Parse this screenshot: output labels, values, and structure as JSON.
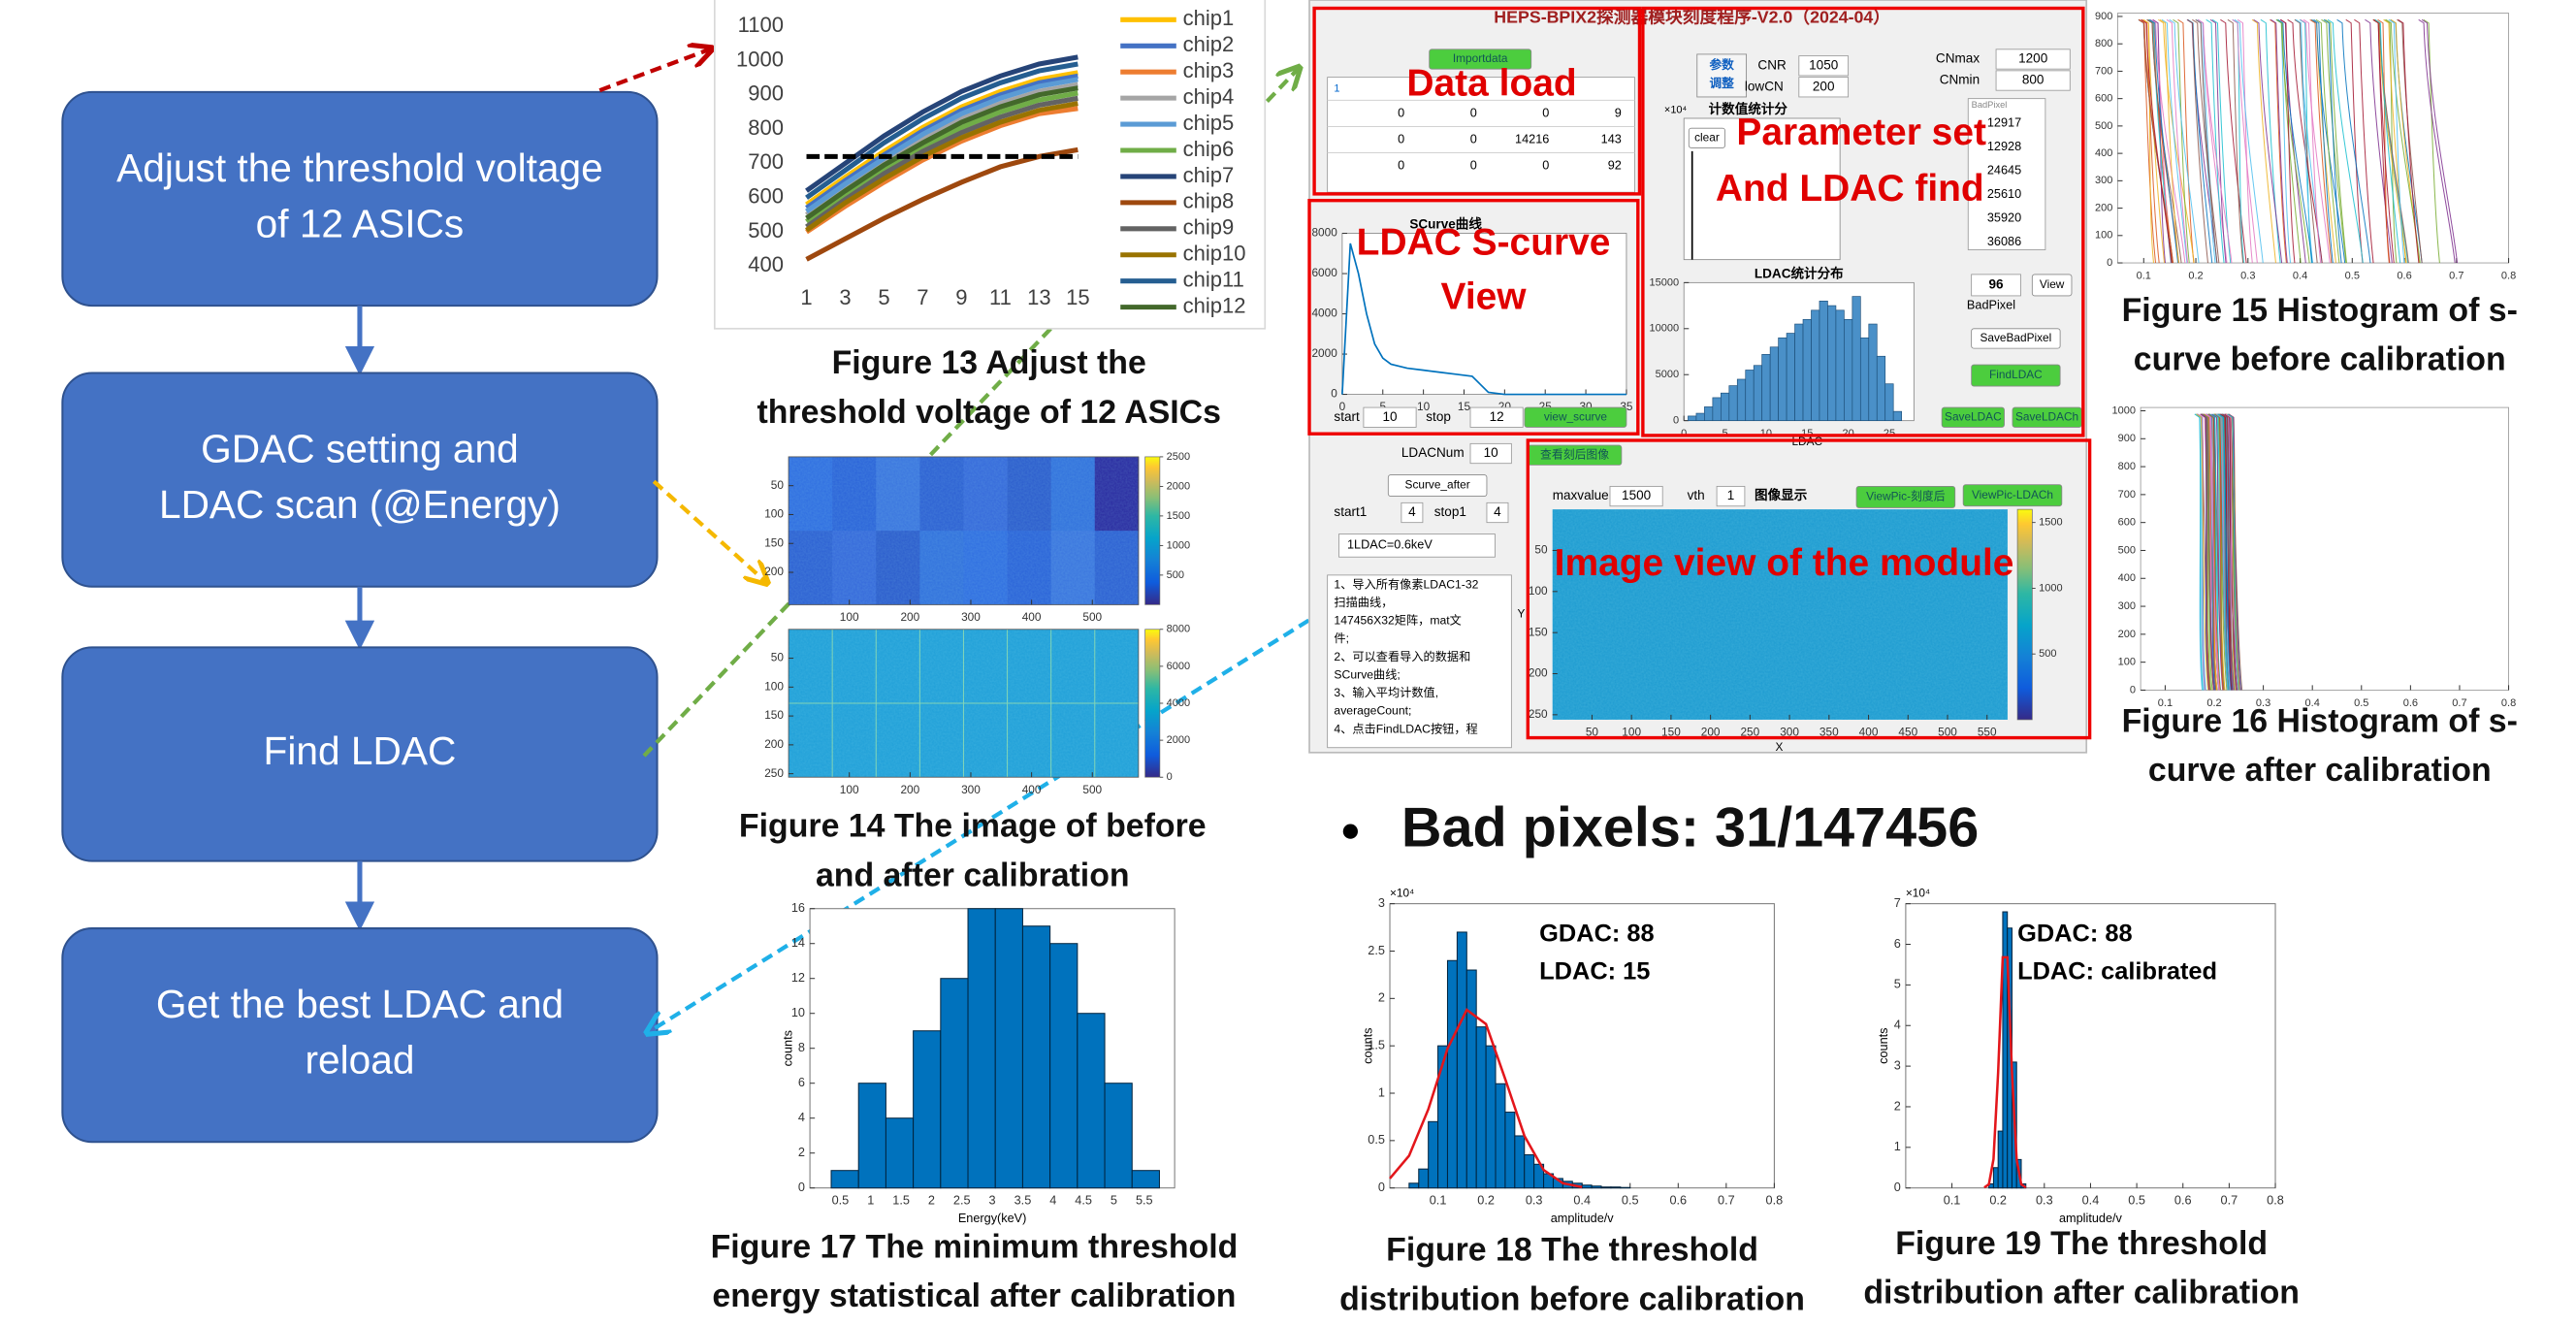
{
  "flow": {
    "steps": [
      {
        "lines": [
          "Adjust the threshold voltage",
          "of 12 ASICs"
        ]
      },
      {
        "lines": [
          "GDAC setting and",
          "LDAC scan (@Energy)"
        ]
      },
      {
        "lines": [
          "Find LDAC"
        ]
      },
      {
        "lines": [
          "Get the best LDAC and",
          "reload"
        ]
      }
    ]
  },
  "chart_data": [
    {
      "type": "line",
      "caption": [
        "Figure 13 Adjust the",
        "threshold voltage of 12 ASICs"
      ],
      "x": [
        1,
        3,
        5,
        7,
        9,
        11,
        13,
        15
      ],
      "xlim": [
        0.5,
        15.5
      ],
      "xticks": [
        1,
        3,
        5,
        7,
        9,
        11,
        13,
        15
      ],
      "ylim": [
        400,
        1100
      ],
      "yticks": [
        400,
        500,
        600,
        700,
        800,
        900,
        1000,
        1100
      ],
      "threshold": 720,
      "series": [
        {
          "name": "chip1",
          "color": "#ffc000",
          "values": [
            580,
            660,
            735,
            805,
            865,
            910,
            945,
            965
          ]
        },
        {
          "name": "chip2",
          "color": "#4472c4",
          "values": [
            570,
            650,
            725,
            795,
            855,
            900,
            935,
            955
          ]
        },
        {
          "name": "chip3",
          "color": "#ed7d31",
          "values": [
            500,
            575,
            645,
            710,
            765,
            810,
            845,
            860
          ]
        },
        {
          "name": "chip4",
          "color": "#a5a5a5",
          "values": [
            550,
            630,
            705,
            770,
            830,
            875,
            910,
            930
          ]
        },
        {
          "name": "chip5",
          "color": "#5b9bd5",
          "values": [
            560,
            640,
            715,
            785,
            845,
            890,
            925,
            945
          ]
        },
        {
          "name": "chip6",
          "color": "#70ad47",
          "values": [
            530,
            610,
            685,
            750,
            805,
            850,
            885,
            905
          ]
        },
        {
          "name": "chip7",
          "color": "#264478",
          "values": [
            620,
            700,
            780,
            850,
            910,
            955,
            990,
            1010
          ]
        },
        {
          "name": "chip8",
          "color": "#9e480e",
          "values": [
            420,
            480,
            540,
            595,
            645,
            690,
            720,
            740
          ]
        },
        {
          "name": "chip9",
          "color": "#636363",
          "values": [
            515,
            595,
            670,
            735,
            790,
            835,
            870,
            890
          ]
        },
        {
          "name": "chip10",
          "color": "#997300",
          "values": [
            505,
            585,
            655,
            720,
            775,
            820,
            855,
            875
          ]
        },
        {
          "name": "chip11",
          "color": "#255e91",
          "values": [
            600,
            680,
            760,
            830,
            890,
            935,
            970,
            990
          ]
        },
        {
          "name": "chip12",
          "color": "#43682b",
          "values": [
            540,
            620,
            695,
            760,
            820,
            865,
            900,
            920
          ]
        }
      ]
    },
    {
      "type": "histogram",
      "caption": [
        "Figure 17 The minimum threshold",
        "energy statistical after calibration"
      ],
      "color": "#0072bd",
      "xlabel": "Energy(keV)",
      "ylabel": "counts",
      "bins": [
        0.35,
        0.8,
        1.25,
        1.7,
        2.15,
        2.6,
        3.05,
        3.5,
        3.95,
        4.4,
        4.85,
        5.3,
        5.75
      ],
      "values": [
        1,
        6,
        4,
        9,
        12,
        16,
        16,
        15,
        14,
        10,
        6,
        1
      ],
      "xlim": [
        0,
        6
      ],
      "xticks": [
        0.5,
        1,
        1.5,
        2,
        2.5,
        3,
        3.5,
        4,
        4.5,
        5,
        5.5
      ],
      "ylim": [
        0,
        16
      ],
      "yticks": [
        0,
        2,
        4,
        6,
        8,
        10,
        12,
        14,
        16
      ]
    },
    {
      "type": "histogram",
      "caption": [
        "Figure 18 The threshold",
        "distribution before calibration"
      ],
      "color": "#0072bd",
      "xlabel": "amplitude/v",
      "ylabel": "counts",
      "multiplier": "×10⁴",
      "annotations": [
        "GDAC: 88",
        "LDAC: 15"
      ],
      "bins": [
        0.04,
        0.06,
        0.08,
        0.1,
        0.12,
        0.14,
        0.16,
        0.18,
        0.2,
        0.22,
        0.24,
        0.26,
        0.28,
        0.3,
        0.32,
        0.34,
        0.36,
        0.38,
        0.4,
        0.42,
        0.44,
        0.46,
        0.48,
        0.5
      ],
      "values": [
        0.05,
        0.2,
        0.7,
        1.5,
        2.4,
        2.7,
        2.3,
        1.7,
        1.5,
        1.1,
        0.8,
        0.55,
        0.35,
        0.25,
        0.15,
        0.1,
        0.07,
        0.05,
        0.03,
        0.02,
        0.01,
        0.01,
        0.005
      ],
      "fit": {
        "color": "#e3161b",
        "x": [
          0,
          0.04,
          0.08,
          0.12,
          0.16,
          0.2,
          0.24,
          0.28,
          0.32,
          0.36,
          0.4
        ],
        "values": [
          0.1,
          0.34,
          0.83,
          1.47,
          1.88,
          1.73,
          1.15,
          0.55,
          0.19,
          0.05,
          0.01
        ]
      },
      "xlim": [
        0,
        0.8
      ],
      "xticks": [
        0.1,
        0.2,
        0.3,
        0.4,
        0.5,
        0.6,
        0.7,
        0.8
      ],
      "ylim": [
        0,
        3
      ],
      "yticks": [
        0,
        0.5,
        1,
        1.5,
        2,
        2.5,
        3
      ]
    },
    {
      "type": "histogram",
      "caption": [
        "Figure 19 The threshold",
        "distribution after calibration"
      ],
      "color": "#0072bd",
      "xlabel": "amplitude/v",
      "ylabel": "counts",
      "multiplier": "×10⁴",
      "annotations": [
        "GDAC: 88",
        "LDAC: calibrated"
      ],
      "bins": [
        0.18,
        0.19,
        0.2,
        0.21,
        0.22,
        0.23,
        0.24,
        0.25,
        0.26
      ],
      "values": [
        0.1,
        0.5,
        1.4,
        6.8,
        6.4,
        3.1,
        0.7,
        0.1
      ],
      "fit": {
        "color": "#e3161b",
        "x": [
          0.17,
          0.18,
          0.19,
          0.2,
          0.21,
          0.22,
          0.23,
          0.24,
          0.25,
          0.26
        ],
        "values": [
          0.01,
          0.09,
          0.71,
          2.84,
          5.68,
          5.68,
          2.84,
          0.71,
          0.09,
          0.01
        ]
      },
      "xlim": [
        0,
        0.8
      ],
      "xticks": [
        0.1,
        0.2,
        0.3,
        0.4,
        0.5,
        0.6,
        0.7,
        0.8
      ],
      "ylim": [
        0,
        7
      ],
      "yticks": [
        0,
        1,
        2,
        3,
        4,
        5,
        6,
        7
      ]
    }
  ],
  "heatmaps": {
    "caption": [
      "Figure 14 The image of before",
      "and after calibration"
    ],
    "panels": [
      {
        "xlim": [
          0,
          576
        ],
        "xticks": [
          100,
          200,
          300,
          400,
          500
        ],
        "ylim": [
          0,
          256
        ],
        "yticks": [
          50,
          100,
          150,
          200
        ],
        "clim": [
          0,
          2500
        ],
        "cticks": [
          500,
          1000,
          1500,
          2000,
          2500
        ]
      },
      {
        "xlim": [
          0,
          576
        ],
        "xticks": [
          100,
          200,
          300,
          400,
          500
        ],
        "ylim": [
          0,
          256
        ],
        "yticks": [
          50,
          100,
          150,
          200,
          250
        ],
        "clim": [
          0,
          8000
        ],
        "cticks": [
          0,
          2000,
          4000,
          6000,
          8000
        ]
      }
    ]
  },
  "scurve_histograms": [
    {
      "caption": [
        "Figure 15 Histogram of s-",
        "curve before calibration"
      ],
      "xlim": [
        0.05,
        0.8
      ],
      "xticks": [
        0.1,
        0.2,
        0.3,
        0.4,
        0.5,
        0.6,
        0.7,
        0.8
      ],
      "ylim": [
        0,
        900
      ],
      "yticks": [
        0,
        100,
        200,
        300,
        400,
        500,
        600,
        700,
        800,
        900
      ]
    },
    {
      "caption": [
        "Figure 16 Histogram of s-",
        "curve after calibration"
      ],
      "xlim": [
        0.05,
        0.8
      ],
      "xticks": [
        0.1,
        0.2,
        0.3,
        0.4,
        0.5,
        0.6,
        0.7,
        0.8
      ],
      "ylim": [
        0,
        1000
      ],
      "yticks": [
        0,
        100,
        200,
        300,
        400,
        500,
        600,
        700,
        800,
        900,
        1000
      ]
    }
  ],
  "bad_pixels": "Bad pixels: 31/147456",
  "gui": {
    "title": "HEPS-BPIX2探测器模块刻度程序-V2.0（2024-04）",
    "panel_labels": [
      "Data load",
      "Parameter set",
      "And LDAC find",
      "LDAC S-curve",
      "View",
      "Image view of the module"
    ],
    "buttons": {
      "importdata": "Importdata",
      "view_scurve": "view_scurve",
      "find": "FindLDAC",
      "save_bad": "SaveBadPixel",
      "save_ldac": "SaveLDAC",
      "save_ldach": "SaveLDACh",
      "view": "View",
      "scurve_after": "Scurve_after",
      "view_pic": "ViewPic-刻度后",
      "view_pic_ldach": "ViewPic-LDACh",
      "check": "查看刻后图像",
      "clear": "clear",
      "param": [
        "参数",
        "调整"
      ]
    },
    "fields": [
      {
        "label": "CNR",
        "value": 1050
      },
      {
        "label": "lowCN",
        "value": 200
      },
      {
        "label": "CNmax",
        "value": 1200
      },
      {
        "label": "CNmin",
        "value": 800
      },
      {
        "label": "start",
        "value": 10
      },
      {
        "label": "stop",
        "value": 12
      },
      {
        "label": "LDACNum",
        "value": 10
      },
      {
        "label": "start1",
        "value": 4
      },
      {
        "label": "stop1",
        "value": 4
      },
      {
        "label": "maxvalue",
        "value": 1500
      },
      {
        "label": "vth",
        "value": 1
      }
    ],
    "plot_titles": [
      "计数值统计分",
      "SCurve曲线",
      "LDAC统计分布",
      "图像显示"
    ],
    "count_multiplier": "×10⁴",
    "table_header": 1,
    "table_rows": [
      [
        0,
        0,
        0,
        9
      ],
      [
        0,
        0,
        14216,
        143
      ],
      [
        0,
        0,
        0,
        92
      ]
    ],
    "bad_pixel_list_title": "BadPixel",
    "bad_pixel_list": [
      12917,
      12928,
      24645,
      25610,
      35920,
      36086
    ],
    "bad_pixel_count": 96,
    "bad_pixel_label": "BadPixel",
    "ldac_unit": "1LDAC=0.6keV",
    "instructions": [
      "1、导入所有像素LDAC1-32",
      "扫描曲线，",
      "147456X32矩阵，mat文",
      "件;",
      "2、可以查看导入的数据和",
      "SCurve曲线;",
      "3、输入平均计数值,",
      "averageCount;",
      "4、点击FindLDAC按钮，程"
    ],
    "scurve": {
      "x": [
        0,
        1,
        2,
        3,
        4,
        5,
        6,
        8,
        10,
        12,
        14,
        16,
        17,
        18,
        20,
        25,
        30,
        35
      ],
      "values": [
        0,
        7500,
        6000,
        4000,
        2500,
        1800,
        1500,
        1300,
        1200,
        1100,
        1000,
        900,
        500,
        100,
        0,
        0,
        0,
        0
      ],
      "xlim": [
        0,
        35
      ],
      "xticks": [
        0,
        5,
        10,
        15,
        20,
        25,
        30,
        35
      ],
      "ylim": [
        0,
        8000
      ],
      "yticks": [
        0,
        2000,
        4000,
        6000,
        8000
      ]
    },
    "ldac_hist": {
      "xlabel": "LDAC",
      "bins": [
        0.5,
        1.5,
        2.5,
        3.5,
        4.5,
        5.5,
        6.5,
        7.5,
        8.5,
        9.5,
        10.5,
        11.5,
        12.5,
        13.5,
        14.5,
        15.5,
        16.5,
        17.5,
        18.5,
        19.5,
        20.5,
        21.5,
        22.5,
        23.5,
        24.5,
        25.5,
        26.5
      ],
      "values": [
        500,
        800,
        1500,
        2500,
        3000,
        3800,
        4500,
        5500,
        6000,
        7200,
        8000,
        9000,
        9500,
        10500,
        11000,
        12000,
        13000,
        12500,
        12000,
        11000,
        13500,
        9000,
        10500,
        7000,
        4000,
        1000
      ],
      "xlim": [
        0,
        28
      ],
      "xticks": [
        0,
        5,
        10,
        15,
        20,
        25
      ],
      "ylim": [
        0,
        15000
      ],
      "yticks": [
        0,
        5000,
        10000,
        15000
      ]
    },
    "image": {
      "xlabel": "X",
      "ylabel": "Y",
      "xlim": [
        0,
        576
      ],
      "xticks": [
        50,
        100,
        150,
        200,
        250,
        300,
        350,
        400,
        450,
        500,
        550
      ],
      "ylim": [
        0,
        256
      ],
      "yticks": [
        50,
        100,
        150,
        200,
        250
      ],
      "clim": [
        0,
        1600
      ],
      "cticks": [
        500,
        1000,
        1500
      ]
    }
  }
}
